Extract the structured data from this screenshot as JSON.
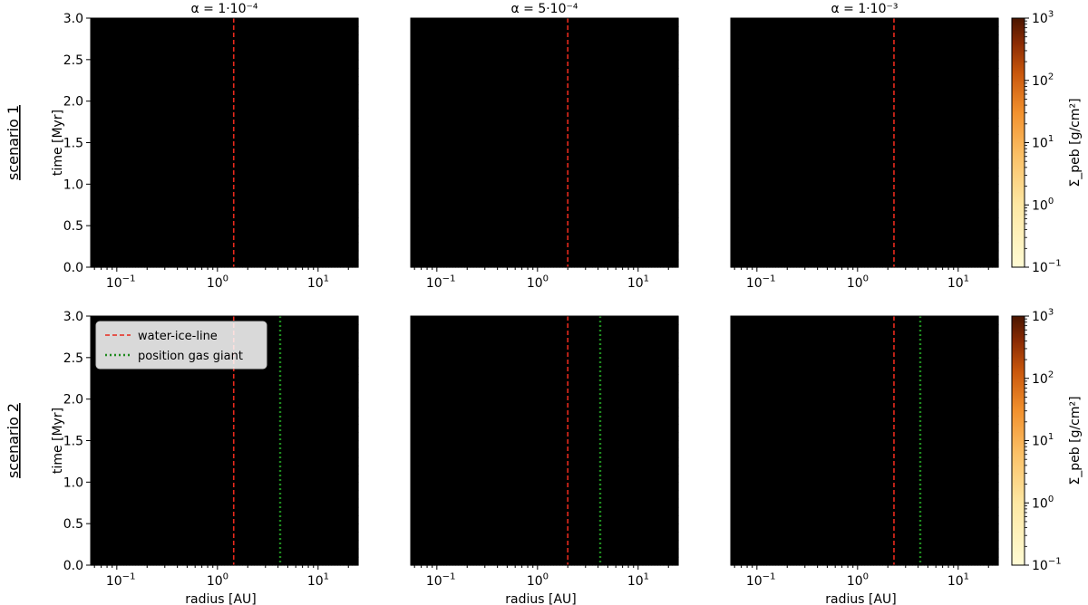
{
  "figure": {
    "row_labels": [
      "scenario 1",
      "scenario 2"
    ],
    "col_titles": [
      "α = 1·10⁻⁴",
      "α = 5·10⁻⁴",
      "α = 1·10⁻³"
    ],
    "xlabel": "radius [AU]",
    "ylabel": "time [Myr]",
    "colorbar_label": "Σ_peb [g/cm²]",
    "legend": {
      "ice_line": "water-ice-line",
      "gas_giant": "position gas giant"
    },
    "colors": {
      "ice_line": "#e8291c",
      "gas_giant": "#1f8a1f",
      "cmap_low": "#fffbd4",
      "cmap_high": "#4a1500"
    }
  },
  "chart_data": [
    {
      "type": "heatmap",
      "panel": "scenario 1, α=1e-4",
      "scenario": 1,
      "alpha": 0.0001,
      "xscale": "log",
      "xlim": [
        0.055,
        25
      ],
      "ylim": [
        0,
        3
      ],
      "colorscale": "log",
      "clim": [
        0.1,
        1000
      ],
      "ice_line_au": 1.45,
      "gas_giant_au": null
    },
    {
      "type": "heatmap",
      "panel": "scenario 1, α=5e-4",
      "scenario": 1,
      "alpha": 0.0005,
      "xscale": "log",
      "xlim": [
        0.055,
        25
      ],
      "ylim": [
        0,
        3
      ],
      "colorscale": "log",
      "clim": [
        0.1,
        1000
      ],
      "ice_line_au": 2.0,
      "gas_giant_au": null
    },
    {
      "type": "heatmap",
      "panel": "scenario 1, α=1e-3",
      "scenario": 1,
      "alpha": 0.001,
      "xscale": "log",
      "xlim": [
        0.055,
        25
      ],
      "ylim": [
        0,
        3
      ],
      "colorscale": "log",
      "clim": [
        0.1,
        1000
      ],
      "ice_line_au": 2.3,
      "gas_giant_au": null
    },
    {
      "type": "heatmap",
      "panel": "scenario 2, α=1e-4",
      "scenario": 2,
      "alpha": 0.0001,
      "xscale": "log",
      "xlim": [
        0.055,
        25
      ],
      "ylim": [
        0,
        3
      ],
      "colorscale": "log",
      "clim": [
        0.1,
        1000
      ],
      "ice_line_au": 1.45,
      "gas_giant_au": 4.2
    },
    {
      "type": "heatmap",
      "panel": "scenario 2, α=5e-4",
      "scenario": 2,
      "alpha": 0.0005,
      "xscale": "log",
      "xlim": [
        0.055,
        25
      ],
      "ylim": [
        0,
        3
      ],
      "colorscale": "log",
      "clim": [
        0.1,
        1000
      ],
      "ice_line_au": 2.0,
      "gas_giant_au": 4.2
    },
    {
      "type": "heatmap",
      "panel": "scenario 2, α=1e-3",
      "scenario": 2,
      "alpha": 0.001,
      "xscale": "log",
      "xlim": [
        0.055,
        25
      ],
      "ylim": [
        0,
        3
      ],
      "colorscale": "log",
      "clim": [
        0.1,
        1000
      ],
      "ice_line_au": 2.3,
      "gas_giant_au": 4.2
    }
  ],
  "axes": {
    "y_ticks": [
      "0.0",
      "0.5",
      "1.0",
      "1.5",
      "2.0",
      "2.5",
      "3.0"
    ],
    "y_values": [
      0,
      0.5,
      1.0,
      1.5,
      2.0,
      2.5,
      3.0
    ],
    "x_ticks": [
      {
        "value": 0.1,
        "label": "10",
        "exp": "−1"
      },
      {
        "value": 1,
        "label": "10",
        "exp": "0"
      },
      {
        "value": 10,
        "label": "10",
        "exp": "1"
      }
    ],
    "colorbar_ticks": [
      {
        "value": 0.1,
        "label": "10",
        "exp": "−1"
      },
      {
        "value": 1,
        "label": "10",
        "exp": "0"
      },
      {
        "value": 10,
        "label": "10",
        "exp": "1"
      },
      {
        "value": 100,
        "label": "10",
        "exp": "2"
      },
      {
        "value": 1000,
        "label": "10",
        "exp": "3"
      }
    ]
  }
}
